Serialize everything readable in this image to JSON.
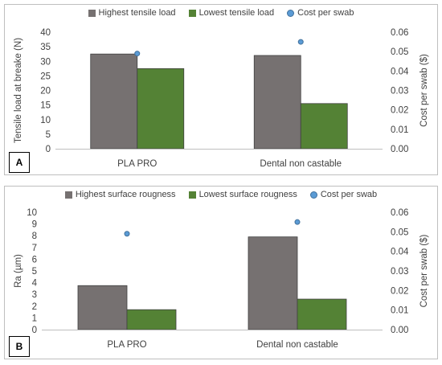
{
  "colors": {
    "series_primary": "#767171",
    "series_secondary": "#548235",
    "cost_marker": "#5b9bd5",
    "cost_marker_outline": "#41719c"
  },
  "chart_data": [
    {
      "type": "bar",
      "panel_label": "A",
      "categories": [
        "PLA PRO",
        "Dental non castable"
      ],
      "series": [
        {
          "name": "Highest tensile load",
          "axis": "left",
          "values": [
            32.5,
            32
          ]
        },
        {
          "name": "Lowest tensile load",
          "axis": "left",
          "values": [
            27.5,
            15.5
          ]
        },
        {
          "name": "Cost per swab",
          "axis": "right",
          "kind": "scatter",
          "values": [
            0.049,
            0.055
          ]
        }
      ],
      "ylabel": "Tensile load at breake (N)",
      "y2label": "Cost per swab ($)",
      "ylim": [
        0,
        40
      ],
      "yticks": [
        "0",
        "5",
        "10",
        "15",
        "20",
        "25",
        "30",
        "35",
        "40"
      ],
      "y2lim": [
        0,
        0.06
      ],
      "y2ticks": [
        "0.00",
        "0.01",
        "0.02",
        "0.03",
        "0.04",
        "0.05",
        "0.06"
      ],
      "legend_position": "top",
      "grid": false
    },
    {
      "type": "bar",
      "panel_label": "B",
      "categories": [
        "PLA PRO",
        "Dental non castable"
      ],
      "series": [
        {
          "name": "Highest surface rougness",
          "axis": "left",
          "values": [
            3.75,
            7.9
          ]
        },
        {
          "name": "Lowest surface rougness",
          "axis": "left",
          "values": [
            1.7,
            2.6
          ]
        },
        {
          "name": "Cost per swab",
          "axis": "right",
          "kind": "scatter",
          "values": [
            0.049,
            0.055
          ]
        }
      ],
      "ylabel": "Ra (µm)",
      "y2label": "Cost per swab ($)",
      "ylim": [
        0,
        10
      ],
      "yticks": [
        "0",
        "1",
        "2",
        "3",
        "4",
        "5",
        "6",
        "7",
        "8",
        "9",
        "10"
      ],
      "y2lim": [
        0,
        0.06
      ],
      "y2ticks": [
        "0.00",
        "0.01",
        "0.02",
        "0.03",
        "0.04",
        "0.05",
        "0.06"
      ],
      "legend_position": "top",
      "grid": false
    }
  ]
}
